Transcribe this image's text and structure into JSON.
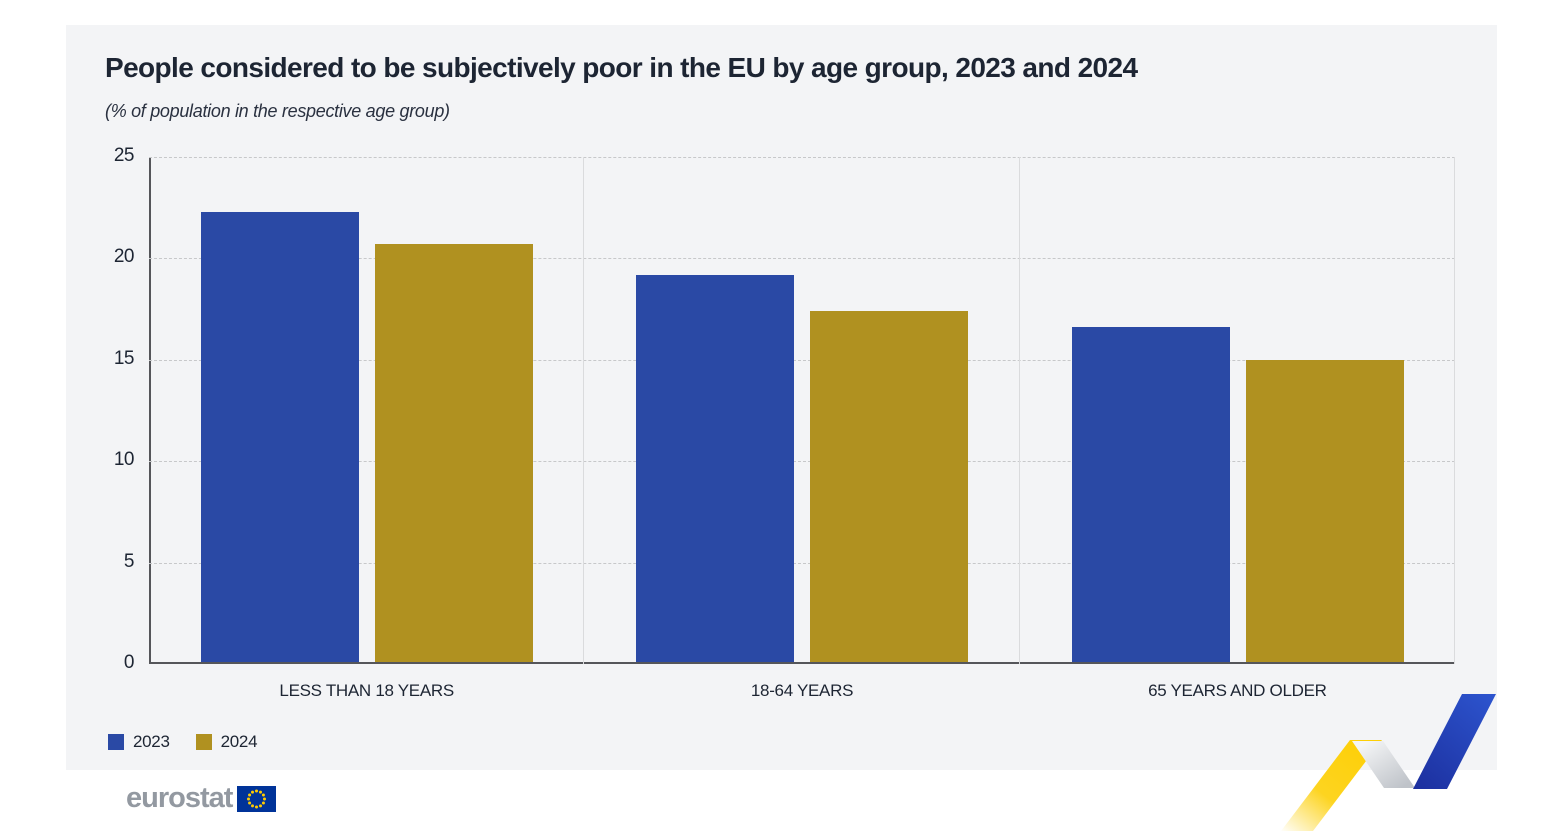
{
  "title": "People considered to be subjectively poor in the EU by age group, 2023 and 2024",
  "subtitle": "(% of population in the respective age group)",
  "chart_data": {
    "type": "bar",
    "categories": [
      "LESS THAN 18 YEARS",
      "18-64 YEARS",
      "65 YEARS AND OLDER"
    ],
    "series": [
      {
        "name": "2023",
        "color": "#2a49a5",
        "values": [
          22.2,
          19.1,
          16.5
        ]
      },
      {
        "name": "2024",
        "color": "#b09120",
        "values": [
          20.6,
          17.3,
          14.9
        ]
      }
    ],
    "ylabel": "",
    "xlabel": "",
    "ylim": [
      0,
      25
    ],
    "yticks": [
      0,
      5,
      10,
      15,
      20,
      25
    ],
    "grid": "horizontal-dashed",
    "legend_position": "bottom-left"
  },
  "legend": {
    "items": [
      {
        "label": "2023"
      },
      {
        "label": "2024"
      }
    ]
  },
  "footer": {
    "logo_text": "eurostat"
  },
  "colors": {
    "panel_background": "#f3f4f6",
    "bar_2023": "#2a49a5",
    "bar_2024": "#b09120",
    "text": "#1d2533",
    "axis": "#55565a",
    "gridline": "#c7c8ca",
    "logo_gray": "#9399a1",
    "eu_flag_blue": "#003399",
    "eu_flag_stars": "#ffcc00",
    "ribbon_yellow": "#fdcf06",
    "ribbon_blue": "#2448c0",
    "ribbon_gray": "#c3c7cd"
  }
}
